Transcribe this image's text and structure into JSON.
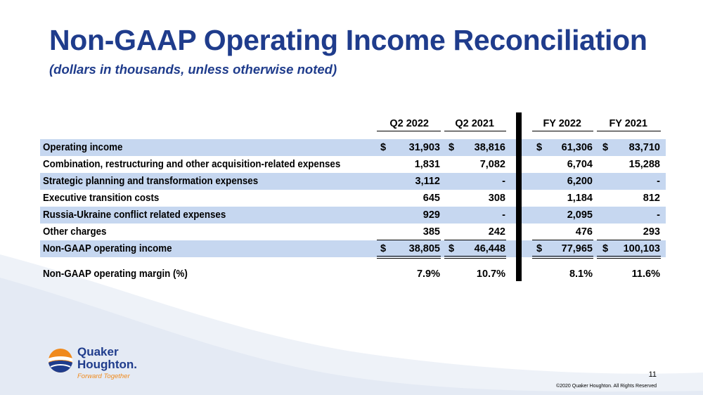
{
  "title": "Non-GAAP Operating Income Reconciliation",
  "subtitle": "(dollars in thousands, unless otherwise noted)",
  "columns": [
    "Q2 2022",
    "Q2 2021",
    "FY 2022",
    "FY 2021"
  ],
  "rows": [
    {
      "label": "Operating income",
      "values": [
        "31,903",
        "38,816",
        "61,306",
        "83,710"
      ],
      "currency": [
        "$",
        "$",
        "$",
        "$"
      ]
    },
    {
      "label": "Combination, restructuring and other acquisition-related expenses",
      "values": [
        "1,831",
        "7,082",
        "6,704",
        "15,288"
      ],
      "currency": [
        "",
        "",
        "",
        ""
      ]
    },
    {
      "label": "Strategic planning and transformation expenses",
      "values": [
        "3,112",
        "-",
        "6,200",
        "-"
      ],
      "currency": [
        "",
        "",
        "",
        ""
      ]
    },
    {
      "label": "Executive transition costs",
      "values": [
        "645",
        "308",
        "1,184",
        "812"
      ],
      "currency": [
        "",
        "",
        "",
        ""
      ]
    },
    {
      "label": "Russia-Ukraine conflict related expenses",
      "values": [
        "929",
        "-",
        "2,095",
        "-"
      ],
      "currency": [
        "",
        "",
        "",
        ""
      ]
    },
    {
      "label": "Other charges",
      "values": [
        "385",
        "242",
        "476",
        "293"
      ],
      "currency": [
        "",
        "",
        "",
        ""
      ]
    },
    {
      "label": "Non-GAAP operating income",
      "values": [
        "38,805",
        "46,448",
        "77,965",
        "100,103"
      ],
      "currency": [
        "$",
        "$",
        "$",
        "$"
      ]
    },
    {
      "label": "Non-GAAP operating margin (%)",
      "values": [
        "7.9%",
        "10.7%",
        "8.1%",
        "11.6%"
      ],
      "currency": [
        "",
        "",
        "",
        ""
      ]
    }
  ],
  "logo": {
    "line1": "Quaker",
    "line2": "Houghton.",
    "tagline": "Forward Together"
  },
  "page_number": "11",
  "copyright": "©2020 Quaker Houghton. All Rights Reserved",
  "colors": {
    "title": "#1f3c8c",
    "row_shade": "#c6d7f0",
    "accent_orange": "#f08a1c"
  }
}
